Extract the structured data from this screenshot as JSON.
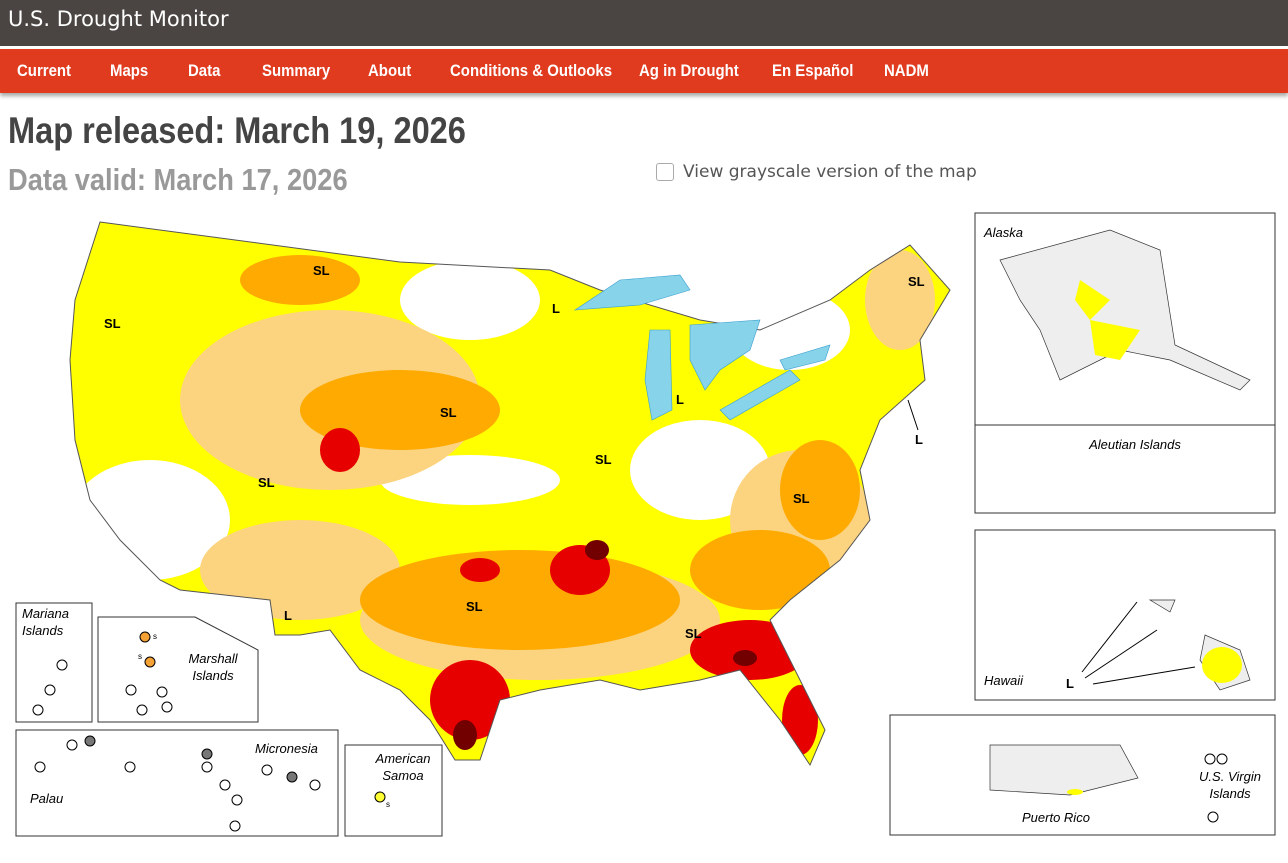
{
  "header": {
    "title": "U.S. Drought Monitor"
  },
  "nav": [
    "Current",
    "Maps",
    "Data",
    "Summary",
    "About",
    "Conditions & Outlooks",
    "Ag in Drought",
    "En Español",
    "NADM"
  ],
  "map_released": "Map released: March 19, 2026",
  "data_valid": "Data valid: March 17, 2026",
  "grayscale_option": "View grayscale version of the map",
  "map": {
    "impact_labels": [
      "SL",
      "SL",
      "L",
      "SL",
      "L",
      "SL",
      "L",
      "SL",
      "SL",
      "SL",
      "SL",
      "L",
      "SL",
      "L"
    ],
    "insets": [
      "Alaska",
      "Aleutian Islands",
      "Hawaii",
      "Mariana Islands",
      "Marshall Islands",
      "Micronesia",
      "Palau",
      "American Samoa",
      "Puerto Rico",
      "U.S. Virgin Islands"
    ],
    "small_labels": [
      "s",
      "s",
      "s"
    ]
  }
}
